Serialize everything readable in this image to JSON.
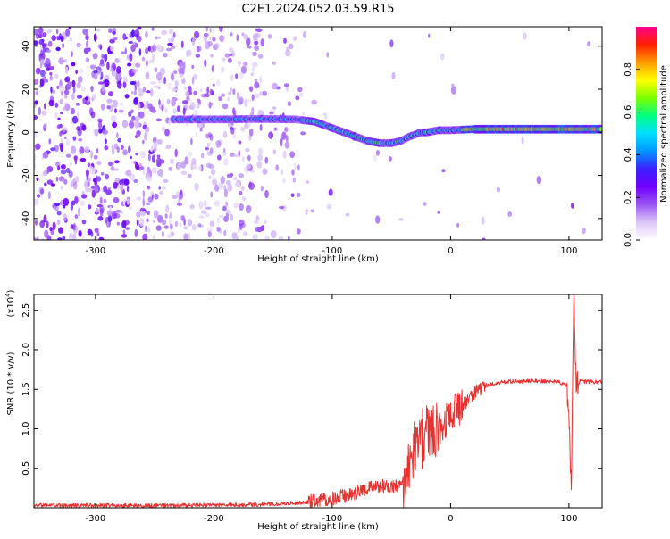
{
  "figure_title": "C2E1.2024.052.03.59.R15",
  "chart_data": [
    {
      "type": "heatmap",
      "title": "C2E1.2024.052.03.59.R15",
      "xlabel": "Height of straight line (km)",
      "ylabel": "Frequency (Hz)",
      "xlim": [
        -352,
        128
      ],
      "ylim": [
        -50,
        49
      ],
      "xticks": [
        -300,
        -200,
        -100,
        0,
        100
      ],
      "xtick_labels": [
        "-300",
        "-200",
        "-100",
        "0",
        "100"
      ],
      "yticks": [
        40,
        20,
        0,
        -20,
        -40
      ],
      "ytick_labels": [
        "40",
        "20",
        "0",
        "-20",
        "-40"
      ],
      "colorbar": {
        "label": "Normalized spectral amplitude",
        "range": [
          0,
          1
        ],
        "ticks": [
          0.0,
          0.2,
          0.4,
          0.6,
          0.8
        ],
        "tick_labels": [
          "0.0",
          "0.2",
          "0.4",
          "0.6",
          "0.8"
        ],
        "colormap_stops": [
          "#ffffff",
          "#dcc7f7",
          "#9a55f3",
          "#7000ff",
          "#3a1fff",
          "#0096ff",
          "#00e0ff",
          "#00ff80",
          "#7dff00",
          "#ffff00",
          "#ff9a00",
          "#ff2000",
          "#ff0090"
        ]
      },
      "ridge": {
        "description_free": true,
        "x": [
          -235,
          -200,
          -160,
          -130,
          -115,
          -100,
          -90,
          -80,
          -70,
          -60,
          -50,
          -42,
          -35,
          -30,
          -25,
          -20,
          -10,
          0,
          20,
          50,
          80,
          100,
          128
        ],
        "y": [
          6,
          6,
          6.2,
          6,
          5,
          2,
          0,
          -2,
          -4,
          -5,
          -5,
          -4,
          -2,
          -1,
          0,
          0,
          1,
          1,
          1.5,
          1.5,
          1.5,
          1.5,
          1.5
        ]
      },
      "grid": false
    },
    {
      "type": "line",
      "xlabel": "Height of straight line (km)",
      "ylabel": "SNR (10 * v/v)",
      "y_multiplier": "(x10",
      "y_multiplier_exp": "4",
      "y_multiplier_close": ")",
      "xlim": [
        -352,
        128
      ],
      "ylim": [
        0,
        27000
      ],
      "xticks": [
        -300,
        -200,
        -100,
        0,
        100
      ],
      "xtick_labels": [
        "-300",
        "-200",
        "-100",
        "0",
        "100"
      ],
      "yticks": [
        5000,
        10000,
        15000,
        20000,
        25000
      ],
      "ytick_labels": [
        "0.5",
        "1.0",
        "1.5",
        "2.0",
        "2.5"
      ],
      "series": [
        {
          "color": "#e8302f",
          "x": [
            -352,
            -300,
            -250,
            -200,
            -160,
            -130,
            -110,
            -100,
            -90,
            -80,
            -70,
            -60,
            -50,
            -45,
            -40,
            -35,
            -30,
            -25,
            -20,
            -15,
            -10,
            -5,
            0,
            10,
            20,
            30,
            40,
            50,
            60,
            70,
            80,
            90,
            98,
            100,
            102,
            104,
            106,
            110,
            128
          ],
          "values": [
            300,
            300,
            300,
            350,
            400,
            600,
            900,
            1200,
            1500,
            1900,
            2500,
            2800,
            2600,
            2800,
            3500,
            5000,
            7500,
            8500,
            9500,
            10000,
            9500,
            10500,
            11500,
            13000,
            14500,
            15500,
            15800,
            16000,
            16000,
            16100,
            16000,
            16000,
            15500,
            12000,
            2000,
            27000,
            15800,
            16000,
            15900
          ]
        }
      ],
      "grid": false
    }
  ]
}
